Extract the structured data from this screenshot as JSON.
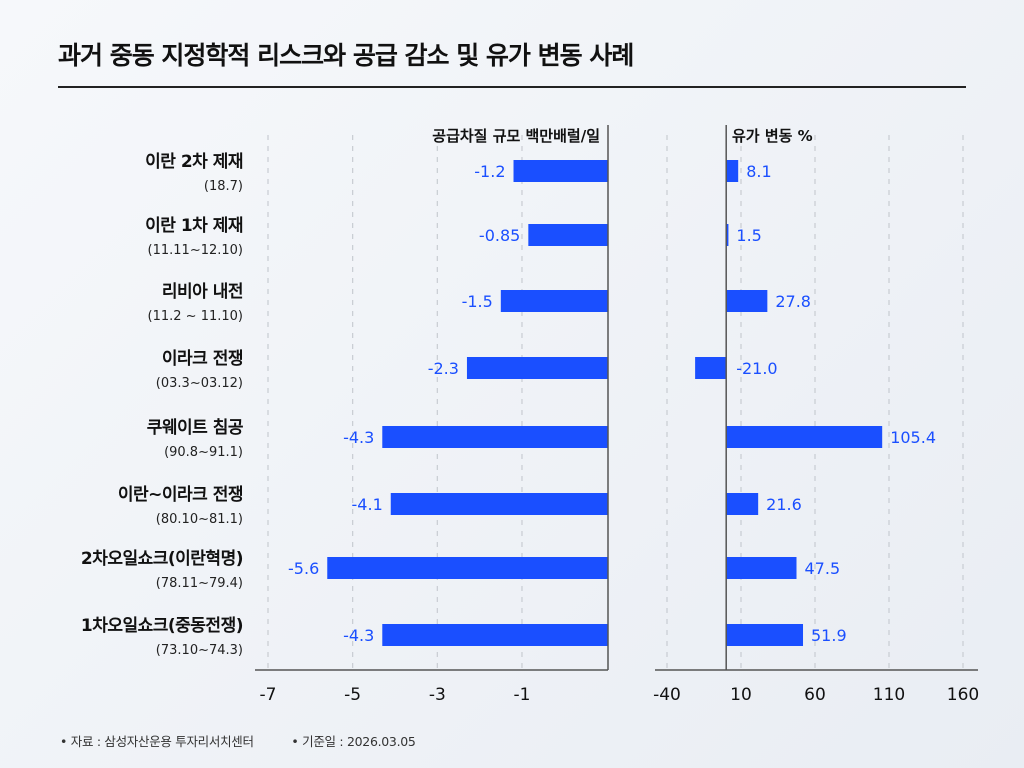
{
  "title": "과거 중동 지정학적 리스크와 공급 감소 및 유가 변동 사례",
  "footer": {
    "source": "• 자료 : 삼성자산운용 투자리서치센터",
    "date": "• 기준일 :  2026.03.05"
  },
  "colors": {
    "bar": "#1a4fff",
    "label": "#1a4fff",
    "axis": "#555555",
    "grid": "#c8ccd2"
  },
  "chart_data": [
    {
      "type": "bar",
      "orientation": "horizontal",
      "title": "공급차질 규모 백만배럴/일",
      "categories": [
        {
          "name": "이란 2차 제재",
          "period": "(18.7)"
        },
        {
          "name": "이란 1차 제재",
          "period": "(11.11~12.10)"
        },
        {
          "name": "리비아 내전",
          "period": "(11.2 ~ 11.10)"
        },
        {
          "name": "이라크 전쟁",
          "period": "(03.3~03.12)"
        },
        {
          "name": "쿠웨이트 침공",
          "period": "(90.8~91.1)"
        },
        {
          "name": "이란~이라크 전쟁",
          "period": "(80.10~81.1)"
        },
        {
          "name": "2차오일쇼크(이란혁명)",
          "period": "(78.11~79.4)"
        },
        {
          "name": "1차오일쇼크(중동전쟁)",
          "period": "(73.10~74.3)"
        }
      ],
      "values": [
        -1.2,
        -0.85,
        -1.5,
        -2.3,
        -4.3,
        -4.1,
        -5.6,
        -4.3
      ],
      "value_labels": [
        "-1.2",
        "-0.85",
        "-1.5",
        "-2.3",
        "-4.3",
        "-4.1",
        "-5.6",
        "-4.3"
      ],
      "xticks": [
        "-7",
        "-5",
        "-3",
        "-1"
      ],
      "xtick_values": [
        -7,
        -5,
        -3,
        -1
      ],
      "xlim": [
        -7.5,
        0
      ],
      "grid": true
    },
    {
      "type": "bar",
      "orientation": "horizontal",
      "title": "유가 변동 %",
      "values": [
        8.1,
        1.5,
        27.8,
        -21.0,
        105.4,
        21.6,
        47.5,
        51.9
      ],
      "value_labels": [
        "8.1",
        "1.5",
        "27.8",
        "-21.0",
        "105.4",
        "21.6",
        "47.5",
        "51.9"
      ],
      "xticks": [
        "-40",
        "10",
        "60",
        "110",
        "160"
      ],
      "xtick_values": [
        -40,
        10,
        60,
        110,
        160
      ],
      "xlim": [
        -48,
        170
      ],
      "grid": true
    }
  ]
}
